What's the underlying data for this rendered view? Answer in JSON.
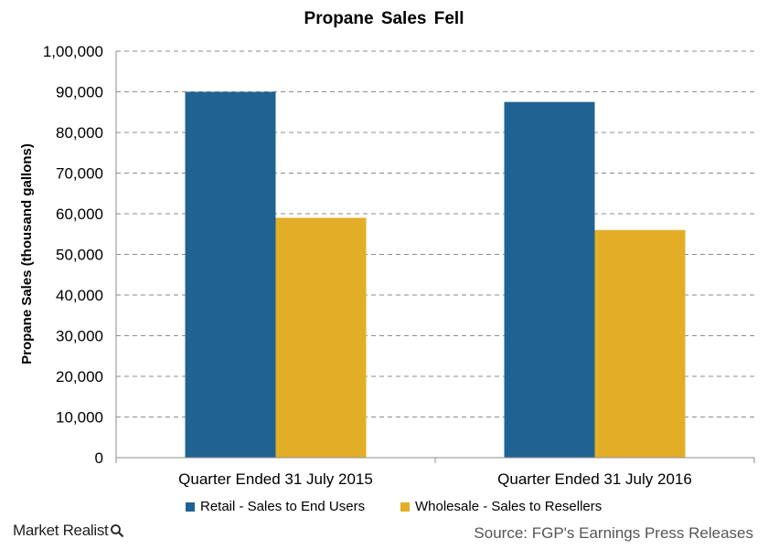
{
  "chart_data": {
    "type": "bar",
    "title": "Propane  Sales  Fell",
    "ylabel": "Propane Sales (thousand gallons)",
    "xlabel": "",
    "categories": [
      "Quarter Ended 31 July 2015",
      "Quarter Ended 31 July 2016"
    ],
    "series": [
      {
        "name": "Retail - Sales to End Users",
        "color": "#1F6393",
        "values": [
          90000,
          87500
        ]
      },
      {
        "name": "Wholesale - Sales to Resellers",
        "color": "#E3AE27",
        "values": [
          59000,
          56000
        ]
      }
    ],
    "ylim": [
      0,
      100000
    ],
    "yticks": [
      0,
      10000,
      20000,
      30000,
      40000,
      50000,
      60000,
      70000,
      80000,
      90000,
      100000
    ],
    "ytick_labels": [
      "0",
      "10,000",
      "20,000",
      "30,000",
      "40,000",
      "50,000",
      "60,000",
      "70,000",
      "80,000",
      "90,000",
      "1,00,000"
    ],
    "grid": true,
    "legend_position": "bottom"
  },
  "footer": {
    "brand": "Market Realist",
    "brand_icon": "magnifier-icon",
    "source": "Source: FGP's Earnings Press Releases"
  }
}
